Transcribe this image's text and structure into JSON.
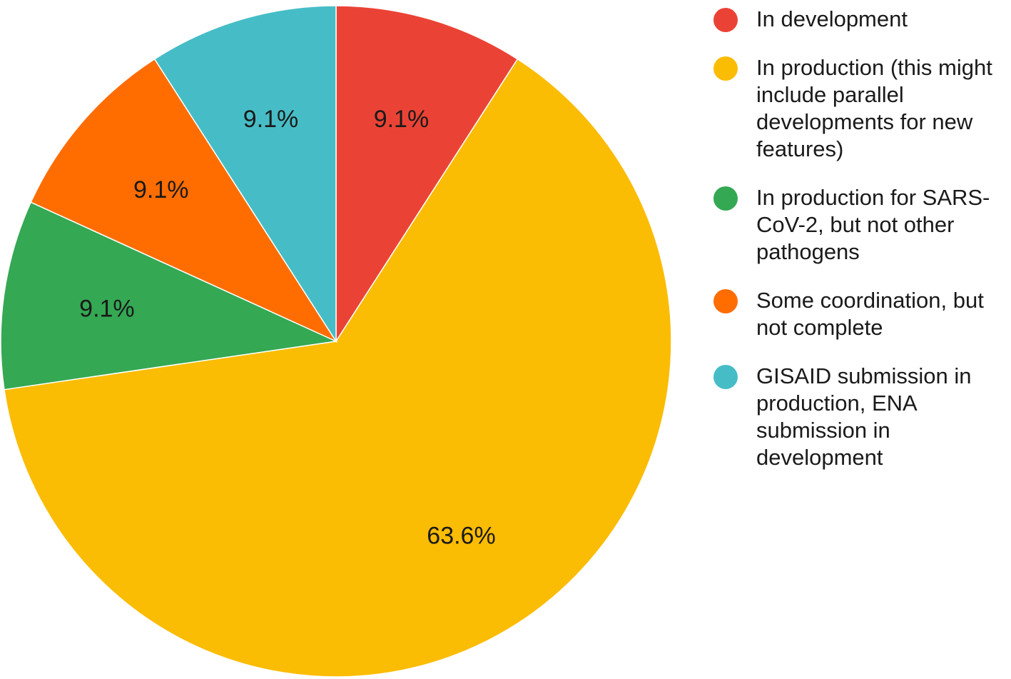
{
  "chart_data": {
    "type": "pie",
    "slices": [
      {
        "label": "In development",
        "value": 9.1,
        "value_label": "9.1%",
        "color": "#EA4335"
      },
      {
        "label": "In production (this might include parallel developments for new features)",
        "value": 63.6,
        "value_label": "63.6%",
        "color": "#FBBC04"
      },
      {
        "label": "In production for SARS-CoV-2, but not other pathogens",
        "value": 9.1,
        "value_label": "9.1%",
        "color": "#34A853"
      },
      {
        "label": "Some coordination, but not complete",
        "value": 9.1,
        "value_label": "9.1%",
        "color": "#FF6D01"
      },
      {
        "label": "GISAID submission in production, ENA submission in development",
        "value": 9.1,
        "value_label": "9.1%",
        "color": "#46BDC6"
      }
    ],
    "start_angle": "top",
    "direction": "clockwise",
    "legend": "right"
  }
}
